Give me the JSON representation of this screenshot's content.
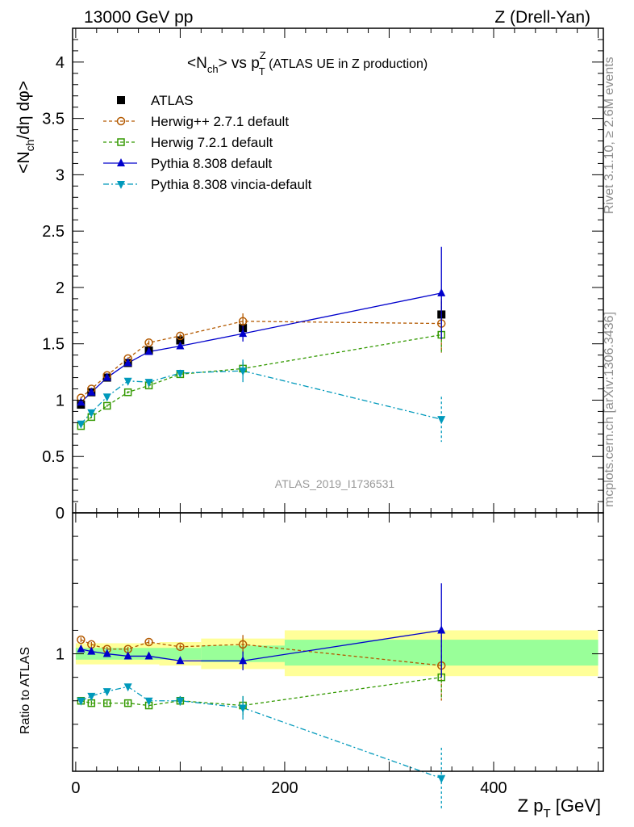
{
  "header": {
    "energy_label": "13000 GeV pp",
    "process_label": "Z (Drell-Yan)"
  },
  "side_text": {
    "rivet": "Rivet 3.1.10, ≥ 2.6M events",
    "mcplots": "mcplots.cern.ch [arXiv:1306.3436]"
  },
  "chart_data": {
    "type": "line",
    "title_main": "<N",
    "title_sub1": "ch",
    "title_mid": "> vs p",
    "title_sup": "Z",
    "title_sub2": "T",
    "title_tail": " (ATLAS UE in Z production)",
    "watermark": "ATLAS_2019_I1736531",
    "ylabel": "<N_ch/dη dφ>",
    "ratio_ylabel": "Ratio to ATLAS",
    "xlabel": "Z p_T [GeV]",
    "xlabel_main": "Z p",
    "xlabel_sub": "T",
    "xlabel_unit": " [GeV]",
    "ylabel_a": "<N",
    "ylabel_sub": "ch",
    "ylabel_b": "/dη dφ>",
    "xlim": [
      -3,
      505
    ],
    "ylim": [
      0,
      4.3
    ],
    "ratio_ylim": [
      0.5,
      1.6
    ],
    "x_ticks": [
      0,
      200,
      400
    ],
    "y_ticks": [
      0,
      0.5,
      1,
      1.5,
      2,
      2.5,
      3,
      3.5,
      4
    ],
    "y_tick_labels": [
      "0",
      "0.5",
      "1",
      "1.5",
      "2",
      "2.5",
      "3",
      "3.5",
      "4"
    ],
    "ratio_y_ticks": [
      1
    ],
    "ratio_y_tick_labels": [
      "1"
    ],
    "grid": false,
    "legend_position": "top-left",
    "x": [
      5,
      15,
      30,
      50,
      70,
      100,
      160,
      350
    ],
    "x_edges": [
      0,
      10,
      20,
      40,
      60,
      80,
      120,
      200,
      500
    ],
    "band_ratio": {
      "inner": [
        {
          "x0": 0,
          "x1": 120,
          "lo": 0.975,
          "hi": 1.025
        },
        {
          "x0": 120,
          "x1": 200,
          "lo": 0.965,
          "hi": 1.035
        },
        {
          "x0": 200,
          "x1": 500,
          "lo": 0.95,
          "hi": 1.06
        }
      ],
      "outer": [
        {
          "x0": 0,
          "x1": 80,
          "lo": 0.955,
          "hi": 1.045
        },
        {
          "x0": 80,
          "x1": 120,
          "lo": 0.95,
          "hi": 1.05
        },
        {
          "x0": 120,
          "x1": 200,
          "lo": 0.935,
          "hi": 1.065
        },
        {
          "x0": 200,
          "x1": 500,
          "lo": 0.905,
          "hi": 1.1
        }
      ]
    },
    "series": [
      {
        "name": "ATLAS",
        "color": "#000000",
        "marker": "square-filled",
        "line": "none",
        "values": [
          0.96,
          1.07,
          1.2,
          1.33,
          1.44,
          1.53,
          1.64,
          1.76
        ],
        "errors": [
          0.02,
          0.02,
          0.02,
          0.02,
          0.02,
          0.03,
          0.05,
          0.12
        ]
      },
      {
        "name": "Herwig++ 2.7.1 default",
        "color": "#b35900",
        "marker": "circle-open",
        "line": "dashed",
        "values": [
          1.02,
          1.1,
          1.22,
          1.37,
          1.51,
          1.57,
          1.7,
          1.68
        ],
        "errors": [
          0.01,
          0.01,
          0.01,
          0.01,
          0.02,
          0.02,
          0.07,
          0.26
        ],
        "ratio": [
          1.06,
          1.04,
          1.02,
          1.02,
          1.05,
          1.03,
          1.04,
          0.95
        ],
        "ratio_errors": [
          0.01,
          0.01,
          0.01,
          0.01,
          0.01,
          0.01,
          0.04,
          0.15
        ]
      },
      {
        "name": "Herwig 7.2.1 default",
        "color": "#339900",
        "marker": "square-open",
        "line": "dashed",
        "values": [
          0.77,
          0.85,
          0.95,
          1.07,
          1.13,
          1.23,
          1.28,
          1.58
        ],
        "errors": [
          0.01,
          0.01,
          0.01,
          0.01,
          0.02,
          0.03,
          0.06,
          0.17
        ],
        "ratio": [
          0.8,
          0.79,
          0.79,
          0.79,
          0.78,
          0.8,
          0.78,
          0.9
        ],
        "ratio_errors": [
          0.01,
          0.01,
          0.01,
          0.01,
          0.01,
          0.02,
          0.04,
          0.09
        ]
      },
      {
        "name": "Pythia 8.308 default",
        "color": "#0000cc",
        "marker": "triangle-up",
        "line": "solid",
        "values": [
          0.98,
          1.07,
          1.2,
          1.33,
          1.43,
          1.48,
          1.59,
          1.95
        ],
        "errors": [
          0.01,
          0.01,
          0.01,
          0.01,
          0.02,
          0.02,
          0.07,
          0.41
        ],
        "ratio": [
          1.02,
          1.01,
          1.0,
          0.99,
          0.99,
          0.97,
          0.97,
          1.1
        ],
        "ratio_errors": [
          0.01,
          0.01,
          0.01,
          0.01,
          0.01,
          0.01,
          0.04,
          0.2
        ]
      },
      {
        "name": "Pythia 8.308 vincia-default",
        "color": "#0099bb",
        "marker": "triangle-down",
        "line": "dashdot",
        "values": [
          0.79,
          0.89,
          1.03,
          1.17,
          1.16,
          1.24,
          1.26,
          0.83
        ],
        "errors": [
          0.01,
          0.01,
          0.01,
          0.02,
          0.02,
          0.03,
          0.1,
          0.2
        ],
        "ratio": [
          0.8,
          0.82,
          0.84,
          0.86,
          0.8,
          0.8,
          0.77,
          0.47
        ],
        "ratio_errors": [
          0.01,
          0.01,
          0.01,
          0.01,
          0.01,
          0.02,
          0.05,
          0.13
        ]
      }
    ]
  }
}
